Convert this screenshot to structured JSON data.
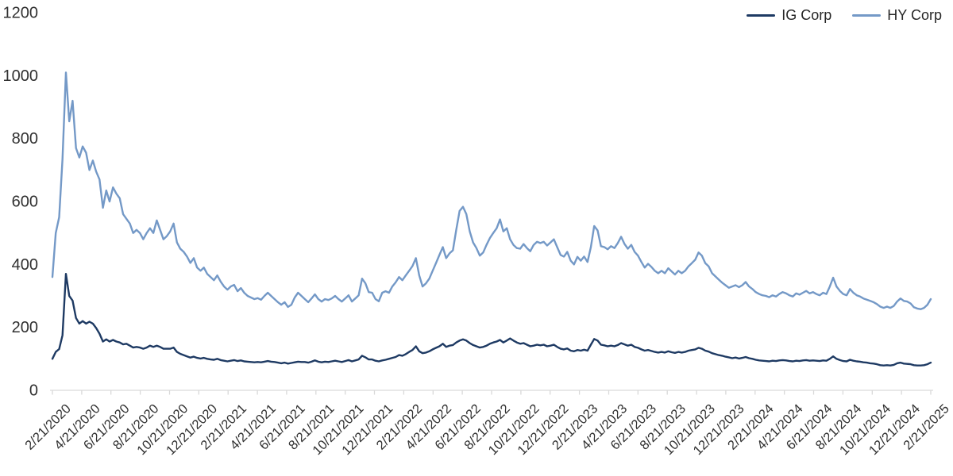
{
  "chart_data": {
    "type": "line",
    "title": "",
    "frequency": "weekly",
    "grid": "none",
    "legend_position": "top-right",
    "axis_line_color": "#D9D9D9",
    "label_color": "#303030",
    "y_axis": {
      "min": 0,
      "max": 1200,
      "tick_step": 200,
      "ticks": [
        0,
        200,
        400,
        600,
        800,
        1000,
        1200
      ]
    },
    "x_axis": {
      "start_label": "2/21/2020",
      "end_label": "2/21/2025",
      "tick_labels": [
        "2/21/2020",
        "4/21/2020",
        "6/21/2020",
        "8/21/2020",
        "10/21/2020",
        "12/21/2020",
        "2/21/2021",
        "4/21/2021",
        "6/21/2021",
        "8/21/2021",
        "10/21/2021",
        "12/21/2021",
        "2/21/2022",
        "4/21/2022",
        "6/21/2022",
        "8/21/2022",
        "10/21/2022",
        "12/21/2022",
        "2/21/2023",
        "4/21/2023",
        "6/21/2023",
        "8/21/2023",
        "10/21/2023",
        "12/21/2023",
        "2/21/2024",
        "4/21/2024",
        "6/21/2024",
        "8/21/2024",
        "10/21/2024",
        "12/21/2024",
        "2/21/2025"
      ]
    },
    "series": [
      {
        "name": "IG Corp",
        "color": "#1E3A63",
        "values": [
          100,
          122,
          131,
          175,
          370,
          300,
          285,
          230,
          212,
          220,
          212,
          218,
          212,
          198,
          180,
          155,
          162,
          155,
          160,
          155,
          152,
          146,
          148,
          142,
          136,
          138,
          136,
          132,
          136,
          142,
          138,
          142,
          138,
          132,
          132,
          132,
          136,
          122,
          116,
          112,
          108,
          104,
          107,
          103,
          101,
          103,
          100,
          98,
          97,
          100,
          96,
          94,
          92,
          94,
          96,
          93,
          95,
          92,
          91,
          90,
          89,
          90,
          89,
          91,
          93,
          91,
          90,
          88,
          86,
          88,
          85,
          87,
          89,
          91,
          90,
          90,
          88,
          91,
          95,
          91,
          89,
          91,
          90,
          92,
          94,
          92,
          90,
          93,
          96,
          92,
          95,
          98,
          110,
          105,
          98,
          98,
          94,
          92,
          95,
          97,
          100,
          103,
          106,
          112,
          110,
          115,
          122,
          128,
          140,
          124,
          118,
          120,
          124,
          130,
          135,
          140,
          148,
          138,
          142,
          144,
          152,
          158,
          162,
          158,
          150,
          144,
          140,
          136,
          138,
          142,
          148,
          152,
          155,
          160,
          152,
          158,
          165,
          158,
          152,
          148,
          150,
          145,
          140,
          142,
          145,
          143,
          145,
          140,
          142,
          145,
          138,
          132,
          130,
          133,
          126,
          124,
          128,
          126,
          129,
          126,
          145,
          163,
          158,
          145,
          143,
          140,
          142,
          140,
          144,
          150,
          146,
          142,
          145,
          138,
          135,
          130,
          126,
          128,
          125,
          122,
          120,
          122,
          120,
          124,
          121,
          119,
          122,
          120,
          122,
          126,
          128,
          130,
          135,
          132,
          126,
          123,
          118,
          115,
          112,
          110,
          107,
          105,
          102,
          104,
          101,
          103,
          106,
          102,
          100,
          97,
          95,
          94,
          93,
          92,
          94,
          93,
          95,
          96,
          95,
          93,
          92,
          94,
          93,
          95,
          96,
          94,
          95,
          94,
          93,
          95,
          94,
          100,
          108,
          100,
          96,
          93,
          92,
          97,
          94,
          92,
          91,
          89,
          88,
          86,
          85,
          83,
          80,
          79,
          80,
          79,
          81,
          86,
          88,
          85,
          84,
          83,
          80,
          79,
          79,
          80,
          83,
          88
        ]
      },
      {
        "name": "HY Corp",
        "color": "#7499C7",
        "values": [
          360,
          500,
          550,
          735,
          1010,
          855,
          920,
          770,
          740,
          775,
          755,
          700,
          730,
          695,
          670,
          580,
          635,
          600,
          645,
          625,
          610,
          560,
          545,
          530,
          500,
          510,
          500,
          480,
          500,
          515,
          500,
          540,
          510,
          480,
          490,
          505,
          530,
          470,
          450,
          440,
          425,
          405,
          420,
          390,
          380,
          390,
          370,
          360,
          350,
          365,
          345,
          330,
          320,
          330,
          335,
          315,
          325,
          310,
          300,
          295,
          290,
          293,
          288,
          300,
          310,
          300,
          290,
          280,
          272,
          280,
          265,
          272,
          295,
          310,
          300,
          290,
          280,
          292,
          305,
          290,
          282,
          290,
          287,
          292,
          300,
          290,
          282,
          292,
          302,
          282,
          292,
          302,
          355,
          340,
          312,
          310,
          290,
          283,
          310,
          315,
          310,
          330,
          343,
          360,
          350,
          365,
          380,
          395,
          420,
          365,
          330,
          340,
          355,
          380,
          405,
          430,
          455,
          420,
          435,
          445,
          510,
          570,
          583,
          560,
          505,
          470,
          452,
          428,
          438,
          462,
          484,
          500,
          515,
          543,
          505,
          515,
          480,
          462,
          452,
          450,
          465,
          452,
          442,
          462,
          472,
          468,
          472,
          460,
          470,
          480,
          455,
          430,
          425,
          440,
          412,
          400,
          424,
          412,
          425,
          408,
          455,
          522,
          508,
          458,
          455,
          448,
          458,
          452,
          468,
          488,
          465,
          450,
          462,
          440,
          428,
          408,
          390,
          402,
          392,
          380,
          372,
          380,
          372,
          388,
          378,
          368,
          380,
          372,
          380,
          394,
          404,
          415,
          438,
          428,
          404,
          394,
          372,
          362,
          352,
          342,
          334,
          326,
          330,
          334,
          328,
          334,
          344,
          330,
          322,
          312,
          306,
          302,
          300,
          296,
          302,
          298,
          306,
          312,
          308,
          302,
          298,
          308,
          304,
          310,
          316,
          308,
          312,
          306,
          302,
          310,
          306,
          330,
          358,
          330,
          316,
          306,
          302,
          322,
          310,
          302,
          298,
          292,
          288,
          284,
          280,
          274,
          266,
          262,
          266,
          262,
          268,
          282,
          292,
          284,
          282,
          276,
          264,
          260,
          258,
          262,
          272,
          290
        ]
      }
    ]
  }
}
